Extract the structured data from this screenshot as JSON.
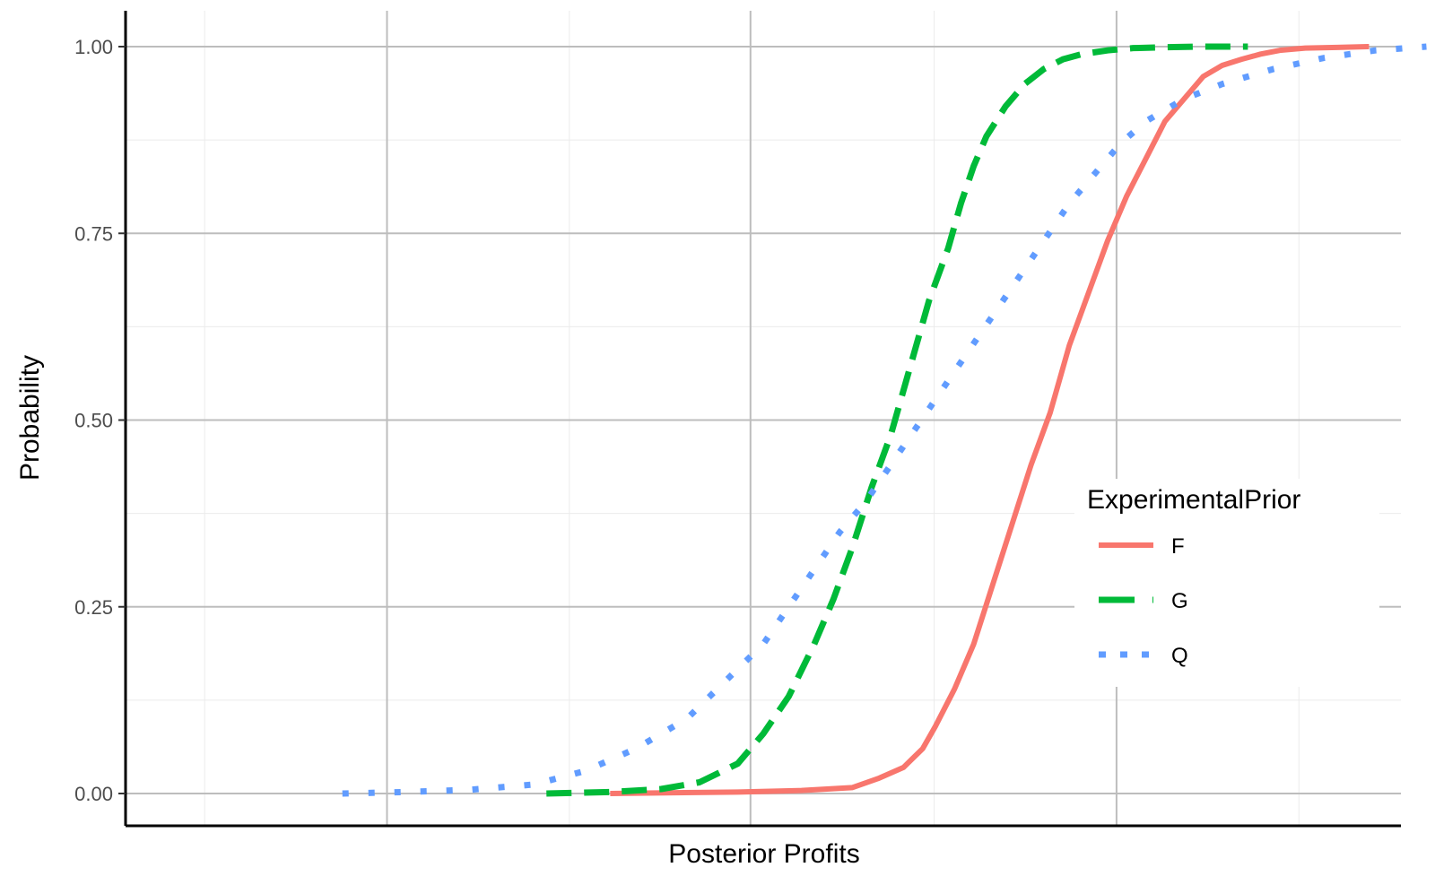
{
  "chart_data": {
    "type": "line",
    "title": "",
    "xlabel": "Posterior Profits",
    "ylabel": "Probability",
    "ylim": [
      0,
      1
    ],
    "yticks": [
      "0.00",
      "0.25",
      "0.50",
      "0.75",
      "1.00"
    ],
    "xticks": [],
    "grid": true,
    "legend": {
      "title": "ExperimentalPrior",
      "position": "right"
    },
    "series": [
      {
        "name": "F",
        "color": "#F8766D",
        "style": "solid",
        "x": [
          0.38,
          0.43,
          0.48,
          0.53,
          0.57,
          0.59,
          0.61,
          0.625,
          0.635,
          0.65,
          0.665,
          0.68,
          0.695,
          0.71,
          0.725,
          0.74,
          0.755,
          0.77,
          0.785,
          0.8,
          0.815,
          0.83,
          0.845,
          0.86,
          0.875,
          0.89,
          0.905,
          0.925,
          0.95,
          0.975
        ],
        "y": [
          0.0,
          0.001,
          0.002,
          0.004,
          0.008,
          0.02,
          0.035,
          0.06,
          0.09,
          0.14,
          0.2,
          0.28,
          0.36,
          0.44,
          0.51,
          0.6,
          0.67,
          0.74,
          0.8,
          0.85,
          0.9,
          0.93,
          0.96,
          0.975,
          0.983,
          0.99,
          0.995,
          0.998,
          0.999,
          1.0
        ]
      },
      {
        "name": "G",
        "color": "#00BA38",
        "style": "dashed",
        "x": [
          0.33,
          0.38,
          0.42,
          0.45,
          0.48,
          0.5,
          0.52,
          0.54,
          0.555,
          0.57,
          0.585,
          0.6,
          0.61,
          0.62,
          0.63,
          0.645,
          0.655,
          0.665,
          0.675,
          0.69,
          0.705,
          0.72,
          0.735,
          0.75,
          0.77,
          0.79,
          0.81,
          0.84,
          0.88
        ],
        "y": [
          0.0,
          0.002,
          0.006,
          0.015,
          0.04,
          0.08,
          0.13,
          0.2,
          0.26,
          0.33,
          0.41,
          0.48,
          0.54,
          0.6,
          0.66,
          0.73,
          0.79,
          0.84,
          0.88,
          0.92,
          0.95,
          0.97,
          0.983,
          0.99,
          0.995,
          0.998,
          0.999,
          1.0,
          1.0
        ]
      },
      {
        "name": "Q",
        "color": "#619CFF",
        "style": "dotted",
        "x": [
          0.17,
          0.22,
          0.27,
          0.32,
          0.36,
          0.4,
          0.44,
          0.47,
          0.5,
          0.52,
          0.54,
          0.56,
          0.58,
          0.6,
          0.62,
          0.64,
          0.66,
          0.68,
          0.7,
          0.72,
          0.74,
          0.76,
          0.78,
          0.8,
          0.83,
          0.86,
          0.9,
          0.94,
          0.98,
          1.02
        ],
        "y": [
          0.0,
          0.002,
          0.005,
          0.012,
          0.03,
          0.06,
          0.1,
          0.15,
          0.2,
          0.25,
          0.3,
          0.35,
          0.39,
          0.44,
          0.49,
          0.54,
          0.59,
          0.64,
          0.69,
          0.74,
          0.79,
          0.83,
          0.87,
          0.9,
          0.93,
          0.95,
          0.97,
          0.985,
          0.995,
          1.0
        ]
      }
    ]
  }
}
